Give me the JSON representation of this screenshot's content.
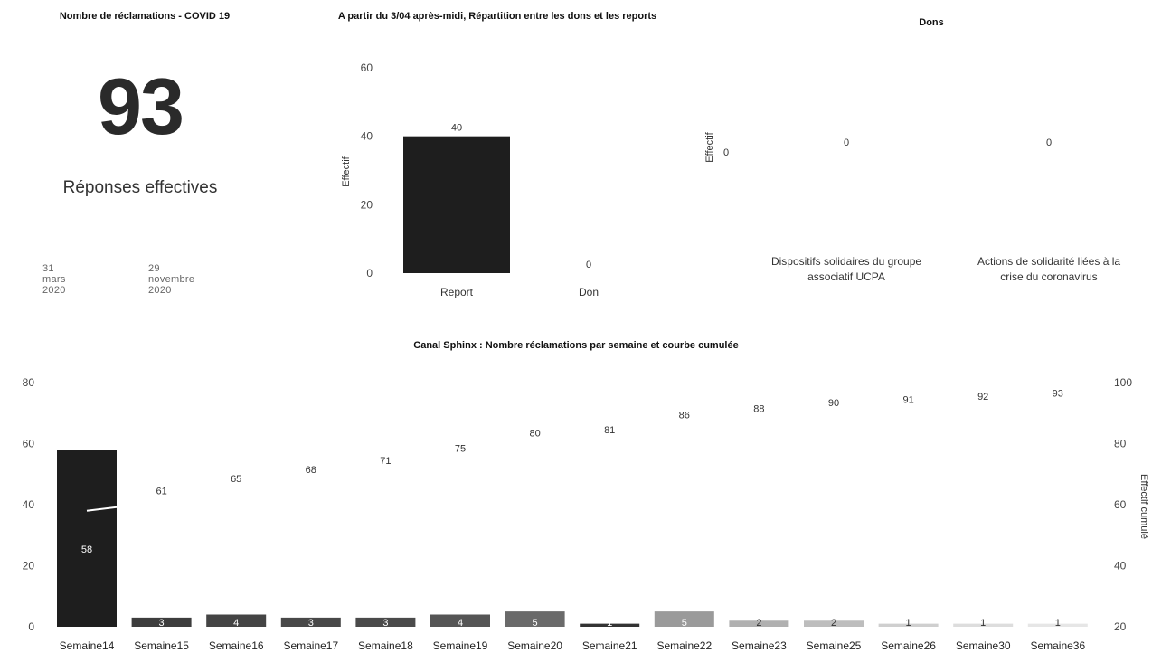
{
  "kpi": {
    "title": "Nombre de réclamations - COVID 19",
    "value": "93",
    "label": "Réponses effectives",
    "date_start": "31 mars 2020",
    "date_end": "29 novembre 2020"
  },
  "colors": {
    "bar_dark": "#1e1e1e",
    "bar_mid": "#555555",
    "bar_light": "#b5b5b5",
    "line": "#ffffff"
  },
  "chart_data": [
    {
      "type": "bar",
      "title": "A partir du 3/04 après-midi, Répartition entre les dons et les reports",
      "categories": [
        "Report",
        "Don"
      ],
      "values": [
        40,
        0
      ],
      "ylabel": "Effectif",
      "ylim": [
        0,
        60
      ],
      "yticks": [
        0,
        20,
        40,
        60
      ]
    },
    {
      "type": "bar",
      "title": "Dons",
      "categories": [
        "",
        "Dispositifs solidaires du groupe associatif UCPA",
        "Actions de solidarité liées à la crise du coronavirus"
      ],
      "values": [
        0,
        0,
        0
      ],
      "ylabel": "Effectif"
    },
    {
      "type": "bar",
      "title": "Canal Sphinx : Nombre réclamations par semaine et courbe cumulée",
      "categories": [
        "Semaine14",
        "Semaine15",
        "Semaine16",
        "Semaine17",
        "Semaine18",
        "Semaine19",
        "Semaine20",
        "Semaine21",
        "Semaine22",
        "Semaine23",
        "Semaine25",
        "Semaine26",
        "Semaine30",
        "Semaine36"
      ],
      "series": [
        {
          "values": [
            58,
            3,
            4,
            3,
            3,
            4,
            5,
            1,
            5,
            2,
            2,
            1,
            1,
            1
          ]
        },
        {
          "type": "line",
          "values": [
            58,
            61,
            65,
            68,
            71,
            75,
            80,
            81,
            86,
            88,
            90,
            91,
            92,
            93
          ]
        }
      ],
      "ylim": [
        0,
        80
      ],
      "yticks": [
        0,
        20,
        40,
        60,
        80
      ],
      "y2label": "Effectif cumulé",
      "y2lim": [
        20,
        100
      ],
      "y2ticks": [
        20,
        40,
        60,
        80,
        100
      ],
      "bar_shades": [
        "#1e1e1e",
        "#3d3d3d",
        "#444444",
        "#484848",
        "#4a4a4a",
        "#555555",
        "#6a6a6a",
        "#333333",
        "#9a9a9a",
        "#b0b0b0",
        "#bdbdbd",
        "#cfcfcf",
        "#dddddd",
        "#e6e6e6"
      ]
    }
  ]
}
